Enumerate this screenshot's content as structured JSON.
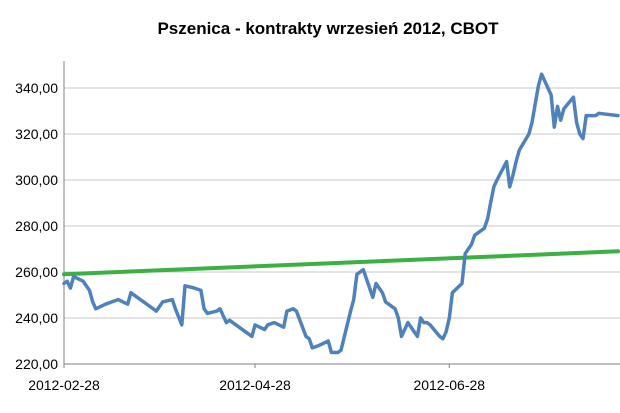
{
  "chart_data": {
    "type": "line",
    "title": "Pszenica - kontrakty wrzesień 2012, CBOT",
    "xlabel": "",
    "ylabel": "",
    "x_range": [
      "2012-02-28",
      "2012-08-20"
    ],
    "ylim": [
      220,
      350
    ],
    "y_ticks": [
      "220,00",
      "240,00",
      "260,00",
      "280,00",
      "300,00",
      "320,00",
      "340,00"
    ],
    "y_tick_values": [
      220,
      240,
      260,
      280,
      300,
      320,
      340
    ],
    "x_ticks": [
      {
        "label": "2012-02-28",
        "date": "2012-02-28"
      },
      {
        "label": "2012-04-28",
        "date": "2012-04-28"
      },
      {
        "label": "2012-06-28",
        "date": "2012-06-28"
      }
    ],
    "grid": "horizontal",
    "legend": "none",
    "series": [
      {
        "color": "#4f81bd",
        "points": [
          [
            "2012-02-28",
            255
          ],
          [
            "2012-02-29",
            256
          ],
          [
            "2012-03-01",
            253
          ],
          [
            "2012-03-02",
            258
          ],
          [
            "2012-03-05",
            256
          ],
          [
            "2012-03-07",
            252
          ],
          [
            "2012-03-08",
            247
          ],
          [
            "2012-03-09",
            244
          ],
          [
            "2012-03-12",
            246
          ],
          [
            "2012-03-14",
            247
          ],
          [
            "2012-03-16",
            248
          ],
          [
            "2012-03-19",
            246
          ],
          [
            "2012-03-20",
            251
          ],
          [
            "2012-03-22",
            249
          ],
          [
            "2012-03-23",
            248
          ],
          [
            "2012-03-26",
            245
          ],
          [
            "2012-03-28",
            243
          ],
          [
            "2012-03-30",
            247
          ],
          [
            "2012-04-02",
            248
          ],
          [
            "2012-04-03",
            244
          ],
          [
            "2012-04-05",
            237
          ],
          [
            "2012-04-06",
            254
          ],
          [
            "2012-04-09",
            253
          ],
          [
            "2012-04-11",
            252
          ],
          [
            "2012-04-12",
            244
          ],
          [
            "2012-04-13",
            242
          ],
          [
            "2012-04-16",
            243
          ],
          [
            "2012-04-17",
            244
          ],
          [
            "2012-04-19",
            238
          ],
          [
            "2012-04-20",
            239
          ],
          [
            "2012-04-23",
            236
          ],
          [
            "2012-04-25",
            234
          ],
          [
            "2012-04-26",
            233
          ],
          [
            "2012-04-27",
            232
          ],
          [
            "2012-04-28",
            237
          ],
          [
            "2012-05-01",
            235
          ],
          [
            "2012-05-02",
            237
          ],
          [
            "2012-05-04",
            238
          ],
          [
            "2012-05-07",
            236
          ],
          [
            "2012-05-08",
            243
          ],
          [
            "2012-05-10",
            244
          ],
          [
            "2012-05-11",
            243
          ],
          [
            "2012-05-14",
            232
          ],
          [
            "2012-05-15",
            231
          ],
          [
            "2012-05-16",
            227
          ],
          [
            "2012-05-18",
            228
          ],
          [
            "2012-05-21",
            230
          ],
          [
            "2012-05-22",
            225
          ],
          [
            "2012-05-24",
            225
          ],
          [
            "2012-05-25",
            226
          ],
          [
            "2012-05-28",
            243
          ],
          [
            "2012-05-29",
            248
          ],
          [
            "2012-05-30",
            259
          ],
          [
            "2012-06-01",
            261
          ],
          [
            "2012-06-04",
            249
          ],
          [
            "2012-06-05",
            255
          ],
          [
            "2012-06-07",
            251
          ],
          [
            "2012-06-08",
            247
          ],
          [
            "2012-06-11",
            244
          ],
          [
            "2012-06-12",
            240
          ],
          [
            "2012-06-13",
            232
          ],
          [
            "2012-06-14",
            235
          ],
          [
            "2012-06-15",
            238
          ],
          [
            "2012-06-18",
            232
          ],
          [
            "2012-06-19",
            240
          ],
          [
            "2012-06-20",
            238
          ],
          [
            "2012-06-21",
            238
          ],
          [
            "2012-06-22",
            237
          ],
          [
            "2012-06-25",
            232
          ],
          [
            "2012-06-26",
            231
          ],
          [
            "2012-06-27",
            234
          ],
          [
            "2012-06-28",
            240
          ],
          [
            "2012-06-29",
            251
          ],
          [
            "2012-07-02",
            255
          ],
          [
            "2012-07-03",
            268
          ],
          [
            "2012-07-05",
            272
          ],
          [
            "2012-07-06",
            276
          ],
          [
            "2012-07-09",
            279
          ],
          [
            "2012-07-10",
            283
          ],
          [
            "2012-07-11",
            290
          ],
          [
            "2012-07-12",
            297
          ],
          [
            "2012-07-13",
            300
          ],
          [
            "2012-07-16",
            308
          ],
          [
            "2012-07-17",
            297
          ],
          [
            "2012-07-18",
            302
          ],
          [
            "2012-07-19",
            308
          ],
          [
            "2012-07-20",
            313
          ],
          [
            "2012-07-23",
            320
          ],
          [
            "2012-07-24",
            325
          ],
          [
            "2012-07-25",
            333
          ],
          [
            "2012-07-26",
            341
          ],
          [
            "2012-07-27",
            346
          ],
          [
            "2012-07-30",
            337
          ],
          [
            "2012-07-31",
            323
          ],
          [
            "2012-08-01",
            332
          ],
          [
            "2012-08-02",
            326
          ],
          [
            "2012-08-03",
            331
          ],
          [
            "2012-08-06",
            336
          ],
          [
            "2012-08-07",
            325
          ],
          [
            "2012-08-08",
            320
          ],
          [
            "2012-08-09",
            318
          ],
          [
            "2012-08-10",
            328
          ],
          [
            "2012-08-13",
            328
          ],
          [
            "2012-08-14",
            329
          ],
          [
            "2012-08-20",
            328
          ]
        ]
      },
      {
        "color": "#3cb043",
        "points": [
          [
            "2012-02-28",
            259
          ],
          [
            "2012-08-20",
            269
          ]
        ]
      }
    ]
  }
}
